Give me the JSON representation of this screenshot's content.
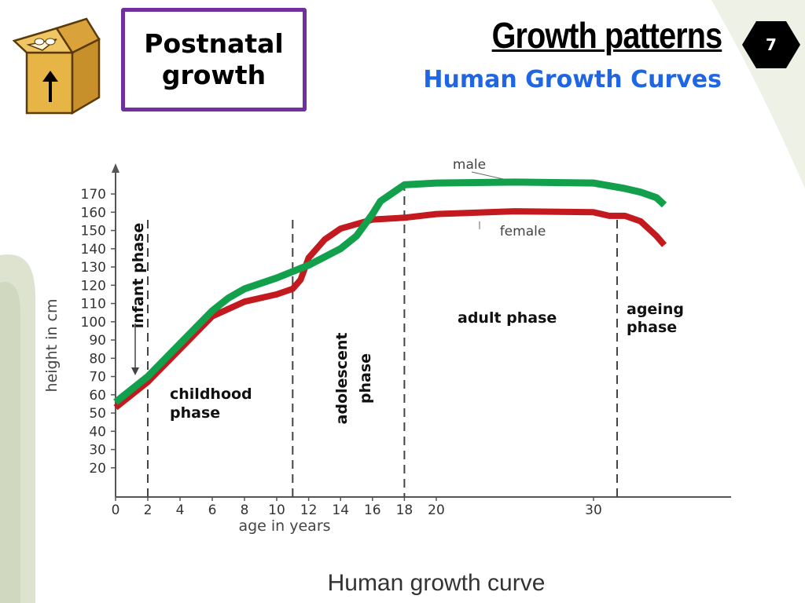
{
  "slide": {
    "topic_line1": "Postnatal",
    "topic_line2": "growth",
    "title": "Growth patterns",
    "subtitle": "Human Growth Curves",
    "number": "7",
    "title_color": "#000000",
    "subtitle_color": "#1f66e5",
    "topic_border_color": "#7030a0"
  },
  "chart_data": {
    "type": "line",
    "title": "Human growth curve",
    "xlabel": "age in years",
    "ylabel": "height in cm",
    "xticks": [
      0,
      2,
      4,
      6,
      8,
      10,
      12,
      14,
      16,
      18,
      20,
      30
    ],
    "yticks": [
      20,
      30,
      40,
      50,
      60,
      70,
      80,
      90,
      100,
      110,
      120,
      130,
      140,
      150,
      160,
      170
    ],
    "xlim": [
      0,
      38
    ],
    "ylim": [
      0,
      180
    ],
    "series": [
      {
        "name": "male",
        "color": "#13a04c",
        "x": [
          0,
          2,
          4,
          6,
          7,
          8,
          10,
          12,
          14,
          15,
          16,
          16.5,
          17,
          18,
          20,
          25,
          30,
          32,
          33,
          34,
          34.5
        ],
        "y": [
          56,
          70,
          88,
          106,
          113,
          118,
          124,
          131,
          140,
          147,
          159,
          166,
          169,
          175,
          176,
          176.5,
          176,
          173,
          171,
          168,
          164
        ]
      },
      {
        "name": "female",
        "color": "#c21a1f",
        "x": [
          0,
          2,
          4,
          6,
          8,
          10,
          11,
          11.5,
          12,
          13,
          14,
          16,
          18,
          20,
          25,
          30,
          31,
          32,
          33,
          34,
          34.5
        ],
        "y": [
          53,
          67,
          85,
          103,
          111,
          115,
          118,
          123,
          135,
          145,
          151,
          156,
          157,
          159,
          160.5,
          160,
          158,
          158,
          155,
          147,
          142
        ]
      }
    ],
    "phase_boundaries": [
      2,
      11,
      18,
      31.5
    ],
    "phases": [
      {
        "label": "infant phase",
        "range": [
          0,
          2
        ]
      },
      {
        "label": "childhood phase",
        "range": [
          2,
          11
        ]
      },
      {
        "label": "adolescent phase",
        "range": [
          11,
          18
        ]
      },
      {
        "label": "adult phase",
        "range": [
          18,
          31.5
        ]
      },
      {
        "label": "ageing phase",
        "range": [
          31.5,
          38
        ]
      }
    ],
    "phase_lines": {
      "childhood": [
        "childhood",
        "phase"
      ],
      "adolescent": [
        "adolescent",
        "phase"
      ],
      "adult": "adult phase",
      "ageing": [
        "ageing",
        "phase"
      ],
      "infant": "infant phase"
    },
    "annotations": {
      "male": "male",
      "female": "female"
    },
    "caption": "Human growth curve"
  }
}
